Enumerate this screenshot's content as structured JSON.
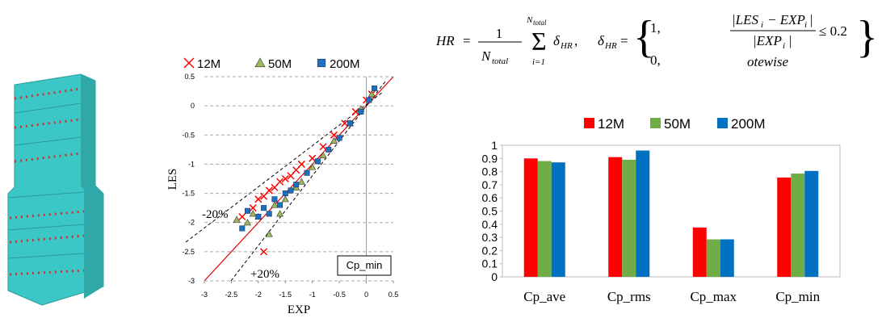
{
  "chart_data": [
    {
      "type": "scatter",
      "x_label": "EXP",
      "y_label": "LES",
      "xlim": [
        -3,
        0.5
      ],
      "ylim": [
        -3,
        0.5
      ],
      "xticks": [
        -3,
        -2.5,
        -2,
        -1.5,
        -1,
        -0.5,
        0,
        0.5
      ],
      "yticks": [
        -3,
        -2.5,
        -2,
        -1.5,
        -1,
        -0.5,
        0,
        0.5
      ],
      "grid": true,
      "legend": "top",
      "annotations": [
        "-20%",
        "+20%",
        "Cp_min"
      ],
      "series": [
        {
          "name": "12M",
          "color": "#ff0000",
          "marker": "x",
          "x": [
            -2.3,
            -2.1,
            -2.0,
            -1.9,
            -1.8,
            -1.7,
            -1.6,
            -1.5,
            -1.4,
            -1.3,
            -1.2,
            -1.0,
            -0.8,
            -0.6,
            -0.4,
            -0.2,
            0.0,
            0.1,
            -1.9
          ],
          "values": [
            -1.9,
            -1.75,
            -1.6,
            -1.55,
            -1.45,
            -1.4,
            -1.3,
            -1.25,
            -1.2,
            -1.1,
            -1.0,
            -0.9,
            -0.7,
            -0.5,
            -0.3,
            -0.1,
            0.1,
            0.2,
            -2.5
          ]
        },
        {
          "name": "50M",
          "color": "#9bbb59",
          "marker": "triangle",
          "x": [
            -2.4,
            -2.2,
            -2.0,
            -1.8,
            -1.7,
            -1.5,
            -1.3,
            -1.2,
            -1.0,
            -0.8,
            -0.6,
            -0.3,
            -0.1,
            0.1,
            -1.6,
            -2.1
          ],
          "values": [
            -1.95,
            -2.0,
            -1.9,
            -2.2,
            -1.7,
            -1.6,
            -1.4,
            -1.3,
            -1.05,
            -0.85,
            -0.6,
            -0.3,
            -0.05,
            0.2,
            -1.85,
            -1.85
          ]
        },
        {
          "name": "200M",
          "color": "#1f6fbf",
          "marker": "square",
          "x": [
            -2.2,
            -2.0,
            -1.9,
            -1.8,
            -1.7,
            -1.6,
            -1.5,
            -1.4,
            -1.3,
            -1.1,
            -0.9,
            -0.7,
            -0.5,
            -0.3,
            -0.1,
            0.05,
            0.15,
            -2.3
          ],
          "values": [
            -1.8,
            -1.9,
            -1.75,
            -1.85,
            -1.6,
            -1.7,
            -1.5,
            -1.45,
            -1.35,
            -1.15,
            -0.95,
            -0.75,
            -0.55,
            -0.3,
            -0.1,
            0.1,
            0.3,
            -2.1
          ]
        }
      ]
    },
    {
      "type": "bar",
      "categories": [
        "Cp_ave",
        "Cp_rms",
        "Cp_max",
        "Cp_min"
      ],
      "ylim": [
        0,
        1
      ],
      "yticks": [
        0,
        0.1,
        0.2,
        0.3,
        0.4,
        0.5,
        0.6,
        0.7,
        0.8,
        0.9,
        1
      ],
      "legend": "top",
      "series": [
        {
          "name": "12M",
          "color": "#ff0000",
          "values": [
            0.9,
            0.91,
            0.375,
            0.755
          ]
        },
        {
          "name": "50M",
          "color": "#70ad47",
          "values": [
            0.88,
            0.89,
            0.285,
            0.785
          ]
        },
        {
          "name": "200M",
          "color": "#0070c0",
          "values": [
            0.87,
            0.96,
            0.285,
            0.805
          ]
        }
      ]
    }
  ],
  "equation": [
    "HR",
    "=",
    "1",
    "N",
    "total",
    "N",
    "total",
    "i=1",
    "δ",
    "HR",
    ",",
    "δ",
    "HR",
    "=",
    "1,",
    "0,",
    "|LES",
    "i",
    "− EXP",
    "i",
    "|",
    "|EXP",
    "i",
    "|",
    "≤ 0.2",
    "otewise",
    "Σ"
  ]
}
